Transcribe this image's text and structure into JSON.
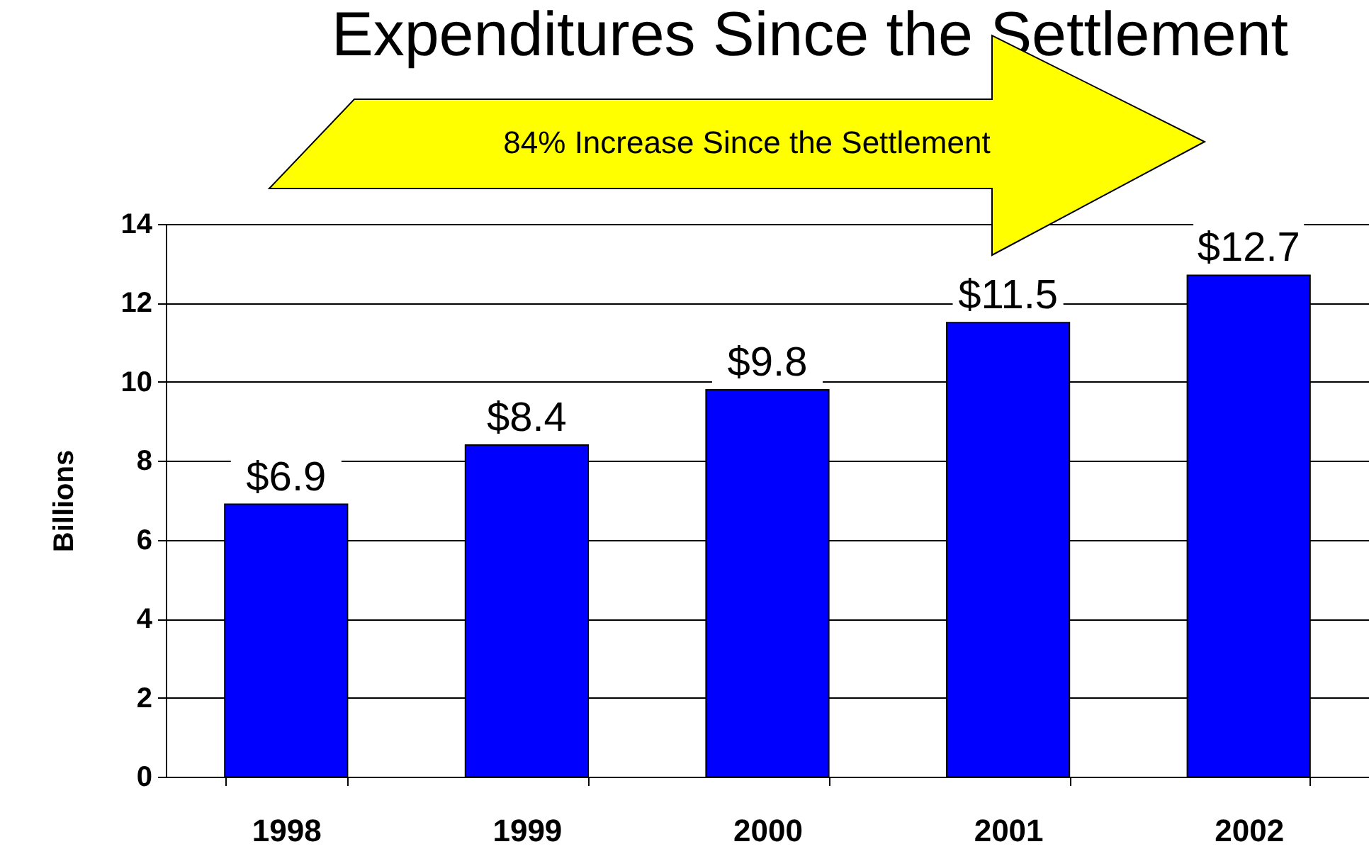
{
  "chart_data": {
    "type": "bar",
    "title": "Expenditures Since the Settlement",
    "ylabel": "Billions",
    "categories": [
      "1998",
      "1999",
      "2000",
      "2001",
      "2002"
    ],
    "values": [
      6.9,
      8.4,
      9.8,
      11.5,
      12.7
    ],
    "value_labels": [
      "$6.9",
      "$8.4",
      "$9.8",
      "$11.5",
      "$12.7"
    ],
    "color": "#0000ff",
    "ylim": [
      0,
      14
    ],
    "yticks": [
      0,
      2,
      4,
      6,
      8,
      10,
      12,
      14
    ],
    "grid": "y",
    "annotations": [
      "84% Increase Since the Settlement"
    ]
  }
}
